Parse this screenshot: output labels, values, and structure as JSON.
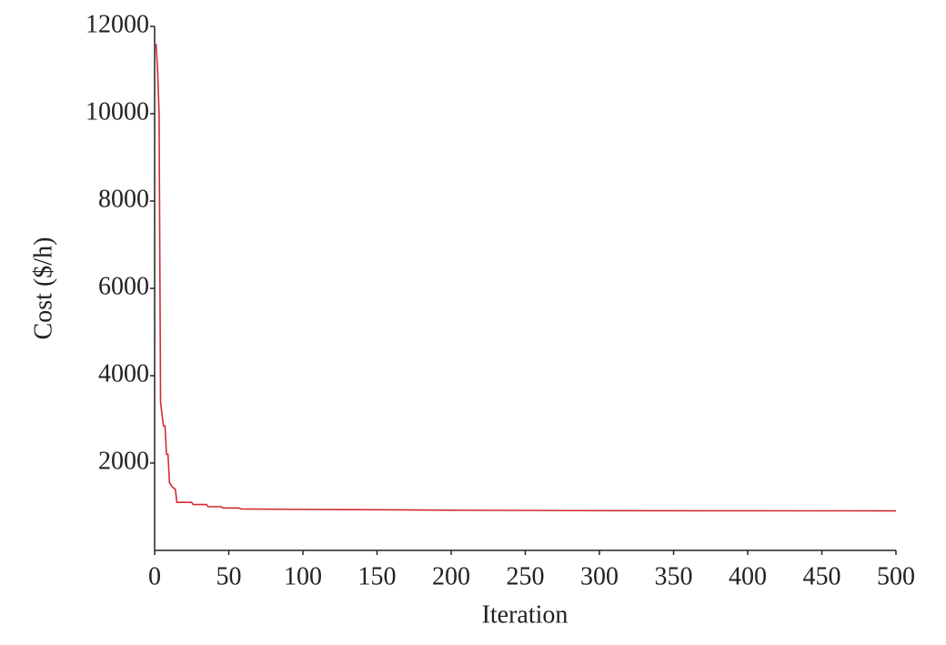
{
  "chart_data": {
    "type": "line",
    "x_label": "Iteration",
    "y_label": "Cost ($/h)",
    "x": [
      1,
      2,
      3,
      4,
      5,
      6,
      7,
      8,
      9,
      10,
      12,
      14,
      15,
      25,
      26,
      35,
      36,
      45,
      46,
      57,
      58,
      90,
      150,
      200,
      300,
      500
    ],
    "series": [
      {
        "name": "Cost",
        "color": "#d42a33",
        "values": [
          11600,
          11000,
          10000,
          3400,
          3100,
          2850,
          2850,
          2200,
          2200,
          1550,
          1450,
          1400,
          1100,
          1100,
          1050,
          1050,
          1000,
          1000,
          970,
          970,
          950,
          940,
          930,
          920,
          910,
          905
        ]
      }
    ],
    "xlim": [
      0,
      500
    ],
    "xticks": [
      0,
      50,
      100,
      150,
      200,
      250,
      300,
      350,
      400,
      450,
      500
    ],
    "ylim": [
      0,
      12000
    ],
    "yticks": [
      2000,
      4000,
      6000,
      8000,
      10000,
      12000
    ],
    "grid": false,
    "legend": false
  }
}
